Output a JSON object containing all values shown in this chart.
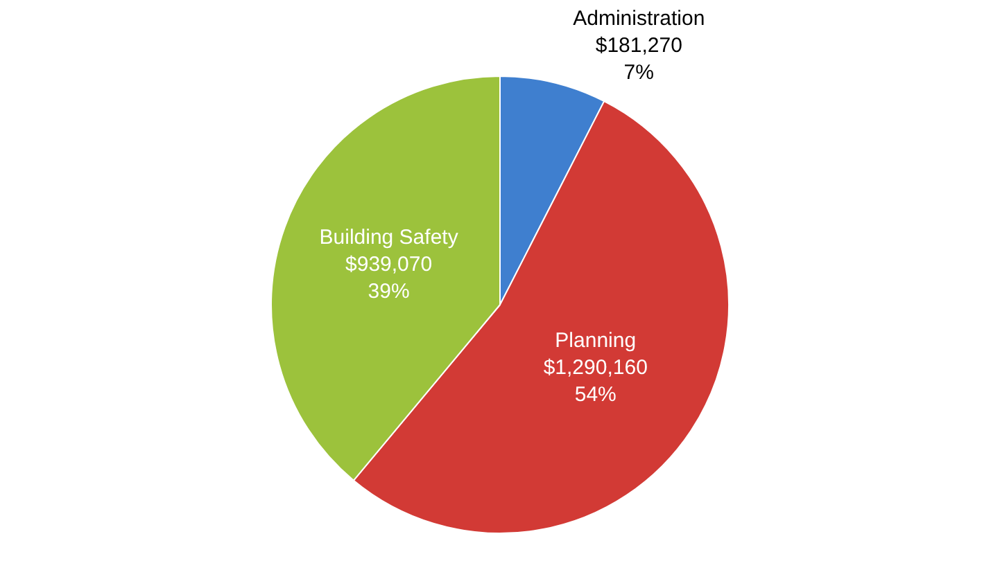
{
  "chart_data": {
    "type": "pie",
    "categories": [
      "Administration",
      "Planning",
      "Building Safety"
    ],
    "values": [
      181270,
      1290160,
      939070
    ],
    "colors": [
      "#3f7fcf",
      "#d23a35",
      "#9cc23c"
    ],
    "value_labels": [
      "$181,270\n7%",
      "$1,290,160\n54%",
      "$939,070\n39%"
    ],
    "legend": false
  }
}
